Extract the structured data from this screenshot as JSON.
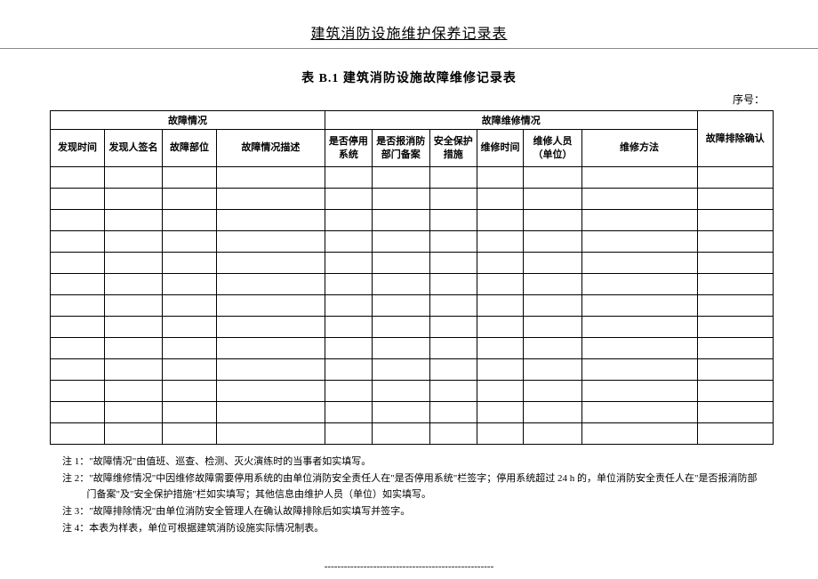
{
  "page_title": "建筑消防设施维护保养记录表",
  "table_label": "表 B.1  建筑消防设施故障维修记录表",
  "serial_label": "序号：",
  "group_headers": {
    "fault": "故障情况",
    "repair": "故障维修情况"
  },
  "columns": [
    "发现时间",
    "发现人签名",
    "故障部位",
    "故障情况描述",
    "是否停用系统",
    "是否报消防部门备案",
    "安全保护措施",
    "维修时间",
    "维修人员（单位）",
    "维修方法",
    "故障排除确认"
  ],
  "empty_row_count": 13,
  "notes": [
    "注 1：\"故障情况\"由值班、巡查、检测、灭火演练时的当事者如实填写。",
    "注 2：\"故障维修情况\"中因维修故障需要停用系统的由单位消防安全责任人在\"是否停用系统\"栏签字；停用系统超过 24 h 的，单位消防安全责任人在\"是否报消防部门备案\"及\"安全保护措施\"栏如实填写；其他信息由维护人员（单位）如实填写。",
    "注 3：\"故障排除情况\"由单位消防安全管理人在确认故障排除后如实填写并签字。",
    "注 4：本表为样表，单位可根据建筑消防设施实际情况制表。"
  ],
  "dash_line": "----------------------------------------------------",
  "col_widths": [
    "7.5%",
    "8%",
    "7.5%",
    "15%",
    "6.5%",
    "8%",
    "6.5%",
    "6.5%",
    "8%",
    "16%",
    "10.5%"
  ]
}
